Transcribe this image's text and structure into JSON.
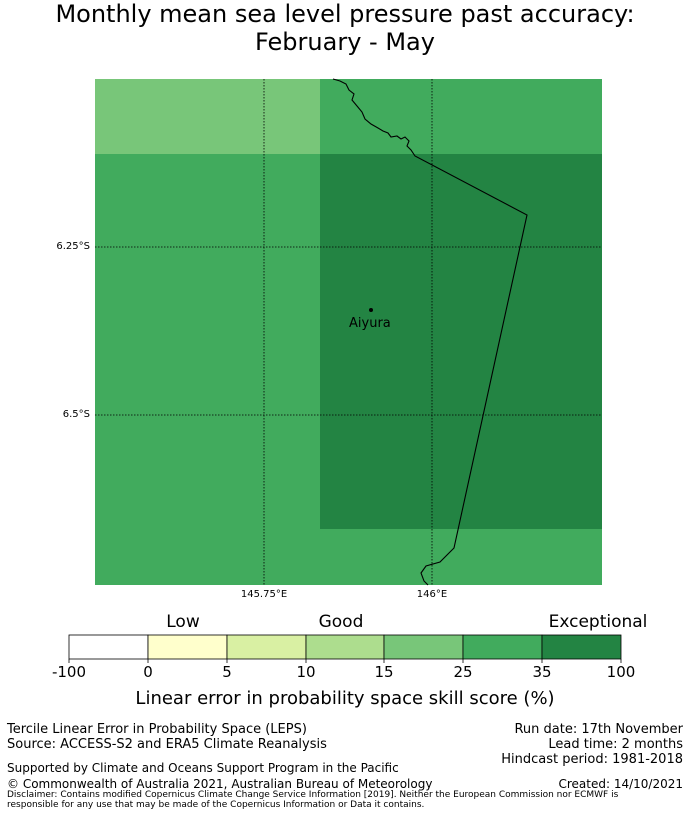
{
  "title": {
    "line1": "Monthly mean sea level pressure past accuracy:",
    "line2": "February - May"
  },
  "map": {
    "place": "Aiyura",
    "lat_labels": [
      "6.25°S",
      "6.5°S"
    ],
    "lon_labels": [
      "145.75°E",
      "146°E"
    ],
    "skill_grid": [
      [
        "15-25",
        "25-35"
      ],
      [
        "25-35",
        "35-100"
      ],
      [
        "25-35",
        "25-35"
      ]
    ]
  },
  "colorbar": {
    "categories": [
      "Low",
      "Good",
      "Exceptional"
    ],
    "ticks": [
      "-100",
      "0",
      "5",
      "10",
      "15",
      "25",
      "35",
      "100"
    ],
    "colors": [
      "#ffffff",
      "#ffffcc",
      "#d9f0a3",
      "#addd8e",
      "#78c679",
      "#41ab5d",
      "#238443"
    ],
    "label": "Linear error in probability space skill score (%)"
  },
  "footer": {
    "left1": "Tercile Linear Error in Probability Space (LEPS)",
    "left2": "Source: ACCESS-S2 and ERA5 Climate Reanalysis",
    "left3": "Supported by Climate and Oceans Support Program in the Pacific",
    "left4": "© Commonwealth of Australia 2021, Australian Bureau of Meteorology",
    "right1": "Run date: 17th November",
    "right2": "Lead time: 2 months",
    "right3": "Hindcast period: 1981-2018",
    "right4": "Created: 14/10/2021",
    "disclaimer": "Disclaimer: Contains modified Copernicus Climate Change Service Information [2019]. Neither the European Commission nor ECMWF is responsible for any use that may be made of the Copernicus Information or Data it contains."
  }
}
